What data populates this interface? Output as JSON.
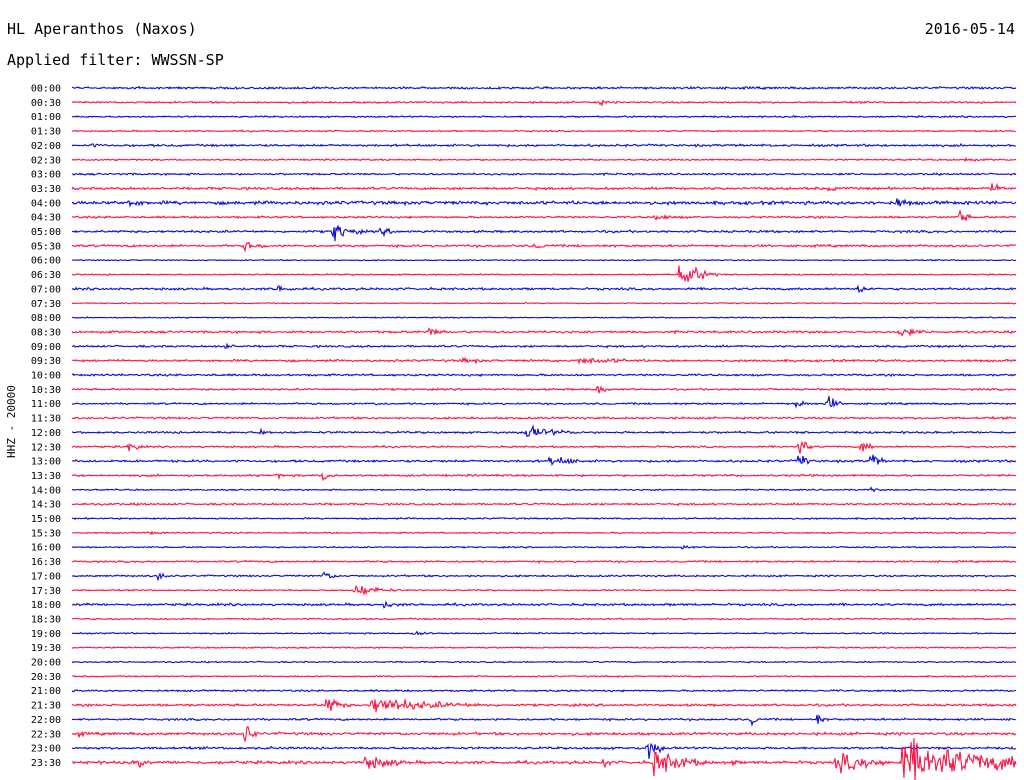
{
  "header": {
    "station": "HL Aperanthos (Naxos)",
    "date": "2016-05-14",
    "filter": "Applied filter: WWSSN-SP",
    "channel": "HHZ - 20000"
  },
  "colors": {
    "trace_a": "#0a0ad2",
    "trace_b": "#ff1144",
    "text": "#000000",
    "background": "#ffffff"
  },
  "chart_data": {
    "type": "line",
    "title": "HL Aperanthos (Naxos)",
    "subtitle": "Applied filter: WWSSN-SP",
    "ylabel": "HHZ - 20000",
    "date": "2016-05-14",
    "grid": false,
    "row_minutes": 30,
    "row_labels": [
      "00:00",
      "00:30",
      "01:00",
      "01:30",
      "02:00",
      "02:30",
      "03:00",
      "03:30",
      "04:00",
      "04:30",
      "05:00",
      "05:30",
      "06:00",
      "06:30",
      "07:00",
      "07:30",
      "08:00",
      "08:30",
      "09:00",
      "09:30",
      "10:00",
      "10:30",
      "11:00",
      "11:30",
      "12:00",
      "12:30",
      "13:00",
      "13:30",
      "14:00",
      "14:30",
      "15:00",
      "15:30",
      "16:00",
      "16:30",
      "17:00",
      "17:30",
      "18:00",
      "18:30",
      "19:00",
      "19:30",
      "20:00",
      "20:30",
      "21:00",
      "21:30",
      "22:00",
      "22:30",
      "23:00",
      "23:30"
    ],
    "series": [
      {
        "color": "#0a0ad2",
        "rows": "00:00,01:00,02:00,...,23:00"
      },
      {
        "color": "#ff1144",
        "rows": "00:30,01:30,02:30,...,23:30"
      }
    ],
    "noise_levels": [
      1.0,
      0.8,
      0.7,
      0.6,
      1.0,
      0.7,
      0.8,
      1.1,
      1.5,
      0.9,
      1.0,
      1.0,
      0.5,
      0.6,
      1.0,
      0.5,
      0.5,
      1.0,
      0.9,
      1.0,
      0.9,
      0.8,
      0.8,
      0.9,
      0.9,
      0.8,
      1.0,
      0.9,
      0.6,
      0.9,
      0.7,
      0.6,
      0.6,
      0.8,
      0.8,
      0.6,
      1.0,
      0.7,
      0.6,
      0.6,
      0.6,
      0.6,
      0.8,
      1.0,
      0.9,
      1.2,
      1.0,
      1.3
    ],
    "events": [
      {
        "row": "00:30",
        "minute": 16.7,
        "amplitude": 3,
        "duration_min": 0.4
      },
      {
        "row": "02:00",
        "minute": 0.6,
        "amplitude": 2,
        "duration_min": 0.6
      },
      {
        "row": "02:30",
        "minute": 28.3,
        "amplitude": 2.5,
        "duration_min": 0.6
      },
      {
        "row": "03:30",
        "minute": 29.2,
        "amplitude": 4,
        "duration_min": 0.8
      },
      {
        "row": "03:30",
        "minute": 24.0,
        "amplitude": 2,
        "duration_min": 1.5
      },
      {
        "row": "04:00",
        "minute": 1.8,
        "amplitude": 4,
        "duration_min": 0.8
      },
      {
        "row": "04:00",
        "minute": 26.2,
        "amplitude": 5,
        "duration_min": 0.6
      },
      {
        "row": "04:30",
        "minute": 18.5,
        "amplitude": 2.5,
        "duration_min": 1.2
      },
      {
        "row": "04:30",
        "minute": 28.2,
        "amplitude": 7,
        "duration_min": 0.3
      },
      {
        "row": "05:00",
        "minute": 8.3,
        "amplitude": 10,
        "duration_min": 0.6
      },
      {
        "row": "05:00",
        "minute": 9.8,
        "amplitude": 3,
        "duration_min": 0.9
      },
      {
        "row": "05:30",
        "minute": 5.5,
        "amplitude": 5,
        "duration_min": 0.6
      },
      {
        "row": "05:30",
        "minute": 14.7,
        "amplitude": 3,
        "duration_min": 0.7
      },
      {
        "row": "06:30",
        "minute": 19.3,
        "amplitude": 12,
        "duration_min": 0.8
      },
      {
        "row": "07:00",
        "minute": 6.5,
        "amplitude": 4,
        "duration_min": 0.6
      },
      {
        "row": "07:00",
        "minute": 25.0,
        "amplitude": 5,
        "duration_min": 0.4
      },
      {
        "row": "08:30",
        "minute": 11.3,
        "amplitude": 4,
        "duration_min": 0.6
      },
      {
        "row": "08:30",
        "minute": 26.3,
        "amplitude": 5,
        "duration_min": 0.7
      },
      {
        "row": "09:00",
        "minute": 4.9,
        "amplitude": 6,
        "duration_min": 0.2
      },
      {
        "row": "09:30",
        "minute": 16.1,
        "amplitude": 3,
        "duration_min": 2.4
      },
      {
        "row": "09:30",
        "minute": 12.4,
        "amplitude": 2.5,
        "duration_min": 1.2
      },
      {
        "row": "10:30",
        "minute": 16.7,
        "amplitude": 6,
        "duration_min": 0.3
      },
      {
        "row": "11:00",
        "minute": 23.0,
        "amplitude": 4,
        "duration_min": 0.5
      },
      {
        "row": "11:00",
        "minute": 9.5,
        "amplitude": 3,
        "duration_min": 0.4
      },
      {
        "row": "11:00",
        "minute": 24.0,
        "amplitude": 9,
        "duration_min": 0.3
      },
      {
        "row": "12:00",
        "minute": 14.4,
        "amplitude": 6,
        "duration_min": 1.2
      },
      {
        "row": "12:00",
        "minute": 6.0,
        "amplitude": 3,
        "duration_min": 0.4
      },
      {
        "row": "12:30",
        "minute": 1.8,
        "amplitude": 5,
        "duration_min": 0.4
      },
      {
        "row": "12:30",
        "minute": 23.1,
        "amplitude": 10,
        "duration_min": 0.3
      },
      {
        "row": "12:30",
        "minute": 25.1,
        "amplitude": 7,
        "duration_min": 0.3
      },
      {
        "row": "13:00",
        "minute": 15.2,
        "amplitude": 5,
        "duration_min": 1.0
      },
      {
        "row": "13:00",
        "minute": 23.1,
        "amplitude": 8,
        "duration_min": 0.3
      },
      {
        "row": "13:00",
        "minute": 25.4,
        "amplitude": 9,
        "duration_min": 0.3
      },
      {
        "row": "13:30",
        "minute": 8.0,
        "amplitude": 7,
        "duration_min": 0.3
      },
      {
        "row": "13:30",
        "minute": 6.5,
        "amplitude": 2.5,
        "duration_min": 0.4
      },
      {
        "row": "14:00",
        "minute": 25.4,
        "amplitude": 2.5,
        "duration_min": 0.3
      },
      {
        "row": "15:30",
        "minute": 2.4,
        "amplitude": 2,
        "duration_min": 0.6
      },
      {
        "row": "16:00",
        "minute": 19.4,
        "amplitude": 2.5,
        "duration_min": 0.4
      },
      {
        "row": "17:00",
        "minute": 2.7,
        "amplitude": 4,
        "duration_min": 0.4
      },
      {
        "row": "17:00",
        "minute": 8.0,
        "amplitude": 5,
        "duration_min": 0.4
      },
      {
        "row": "17:30",
        "minute": 9.0,
        "amplitude": 6,
        "duration_min": 0.9
      },
      {
        "row": "18:00",
        "minute": 9.9,
        "amplitude": 3,
        "duration_min": 0.8
      },
      {
        "row": "18:00",
        "minute": 0.4,
        "amplitude": 2,
        "duration_min": 0.6
      },
      {
        "row": "19:00",
        "minute": 10.8,
        "amplitude": 3,
        "duration_min": 0.6
      },
      {
        "row": "21:30",
        "minute": 8.1,
        "amplitude": 9,
        "duration_min": 0.5
      },
      {
        "row": "21:30",
        "minute": 9.5,
        "amplitude": 7,
        "duration_min": 2.8
      },
      {
        "row": "22:00",
        "minute": 21.6,
        "amplitude": 7,
        "duration_min": 0.2
      },
      {
        "row": "22:00",
        "minute": 23.7,
        "amplitude": 6,
        "duration_min": 0.2
      },
      {
        "row": "22:30",
        "minute": 5.5,
        "amplitude": 11,
        "duration_min": 0.3
      },
      {
        "row": "22:30",
        "minute": 0.2,
        "amplitude": 4,
        "duration_min": 0.2
      },
      {
        "row": "23:00",
        "minute": 18.3,
        "amplitude": 10,
        "duration_min": 0.4
      },
      {
        "row": "23:00",
        "minute": 6.2,
        "amplitude": 4,
        "duration_min": 0.2
      },
      {
        "row": "23:30",
        "minute": 2.1,
        "amplitude": 9,
        "duration_min": 0.2
      },
      {
        "row": "23:30",
        "minute": 9.3,
        "amplitude": 7,
        "duration_min": 1.2
      },
      {
        "row": "23:30",
        "minute": 18.5,
        "amplitude": 12,
        "duration_min": 1.2
      },
      {
        "row": "23:30",
        "minute": 24.3,
        "amplitude": 9,
        "duration_min": 1.5
      },
      {
        "row": "23:30",
        "minute": 26.4,
        "amplitude": 19,
        "duration_min": 3.6
      },
      {
        "row": "23:30",
        "minute": 16.9,
        "amplitude": 6,
        "duration_min": 0.2
      },
      {
        "row": "23:30",
        "minute": 21.0,
        "amplitude": 4,
        "duration_min": 0.2
      }
    ]
  }
}
